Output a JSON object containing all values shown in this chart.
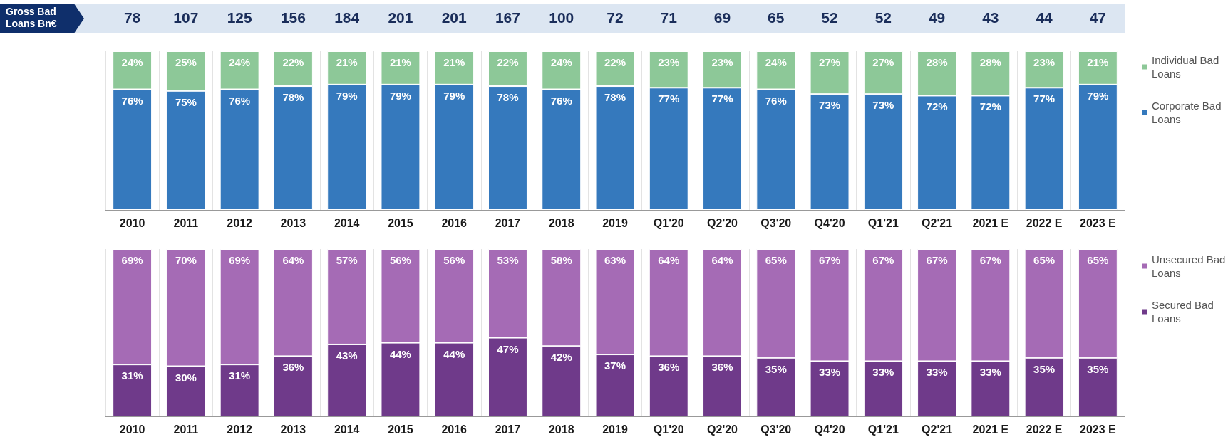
{
  "chart_data": [
    {
      "type": "other",
      "title": "Gross Bad Loans Bn€",
      "annotations": [
        "78",
        "107",
        "125",
        "156",
        "184",
        "201",
        "201",
        "167",
        "100",
        "72",
        "71",
        "69",
        "65",
        "52",
        "52",
        "49",
        "43",
        "44",
        "47"
      ]
    },
    {
      "type": "bar",
      "stacked": true,
      "legend": "right",
      "grid": "x",
      "categories": [
        "2010",
        "2011",
        "2012",
        "2013",
        "2014",
        "2015",
        "2016",
        "2017",
        "2018",
        "2019",
        "Q1'20",
        "Q2'20",
        "Q3'20",
        "Q4'20",
        "Q1'21",
        "Q2'21",
        "2021 E",
        "2022 E",
        "2023 E"
      ],
      "series": [
        {
          "name": "Corporate Bad Loans",
          "color": "#3579bd",
          "values": [
            76,
            75,
            76,
            78,
            79,
            79,
            79,
            78,
            76,
            78,
            77,
            77,
            76,
            73,
            73,
            72,
            72,
            77,
            79
          ],
          "value_labels": [
            "76%",
            "75%",
            "76%",
            "78%",
            "79%",
            "79%",
            "79%",
            "78%",
            "76%",
            "78%",
            "77%",
            "77%",
            "76%",
            "73%",
            "73%",
            "72%",
            "72%",
            "77%",
            "79%"
          ]
        },
        {
          "name": "Individual Bad Loans",
          "color": "#8dc898",
          "values": [
            24,
            25,
            24,
            22,
            21,
            21,
            21,
            22,
            24,
            22,
            23,
            23,
            24,
            27,
            27,
            28,
            28,
            23,
            21
          ],
          "value_labels": [
            "24%",
            "25%",
            "24%",
            "22%",
            "21%",
            "21%",
            "21%",
            "22%",
            "24%",
            "22%",
            "23%",
            "23%",
            "24%",
            "27%",
            "27%",
            "28%",
            "28%",
            "23%",
            "21%"
          ]
        }
      ]
    },
    {
      "type": "bar",
      "stacked": true,
      "legend": "right",
      "grid": "x",
      "categories": [
        "2010",
        "2011",
        "2012",
        "2013",
        "2014",
        "2015",
        "2016",
        "2017",
        "2018",
        "2019",
        "Q1'20",
        "Q2'20",
        "Q3'20",
        "Q4'20",
        "Q1'21",
        "Q2'21",
        "2021 E",
        "2022 E",
        "2023 E"
      ],
      "series": [
        {
          "name": "Secured Bad Loans",
          "color": "#6f3a8a",
          "values": [
            31,
            30,
            31,
            36,
            43,
            44,
            44,
            47,
            42,
            37,
            36,
            36,
            35,
            33,
            33,
            33,
            33,
            35,
            35
          ],
          "value_labels": [
            "31%",
            "30%",
            "31%",
            "36%",
            "43%",
            "44%",
            "44%",
            "47%",
            "42%",
            "37%",
            "36%",
            "36%",
            "35%",
            "33%",
            "33%",
            "33%",
            "33%",
            "35%",
            "35%"
          ]
        },
        {
          "name": "Unsecured Bad Loans",
          "color": "#a56bb5",
          "values": [
            69,
            70,
            69,
            64,
            57,
            56,
            56,
            53,
            58,
            63,
            64,
            64,
            65,
            67,
            67,
            67,
            67,
            65,
            65
          ],
          "value_labels": [
            "69%",
            "70%",
            "69%",
            "64%",
            "57%",
            "56%",
            "56%",
            "53%",
            "58%",
            "63%",
            "64%",
            "64%",
            "65%",
            "67%",
            "67%",
            "67%",
            "67%",
            "65%",
            "65%"
          ]
        }
      ]
    }
  ]
}
